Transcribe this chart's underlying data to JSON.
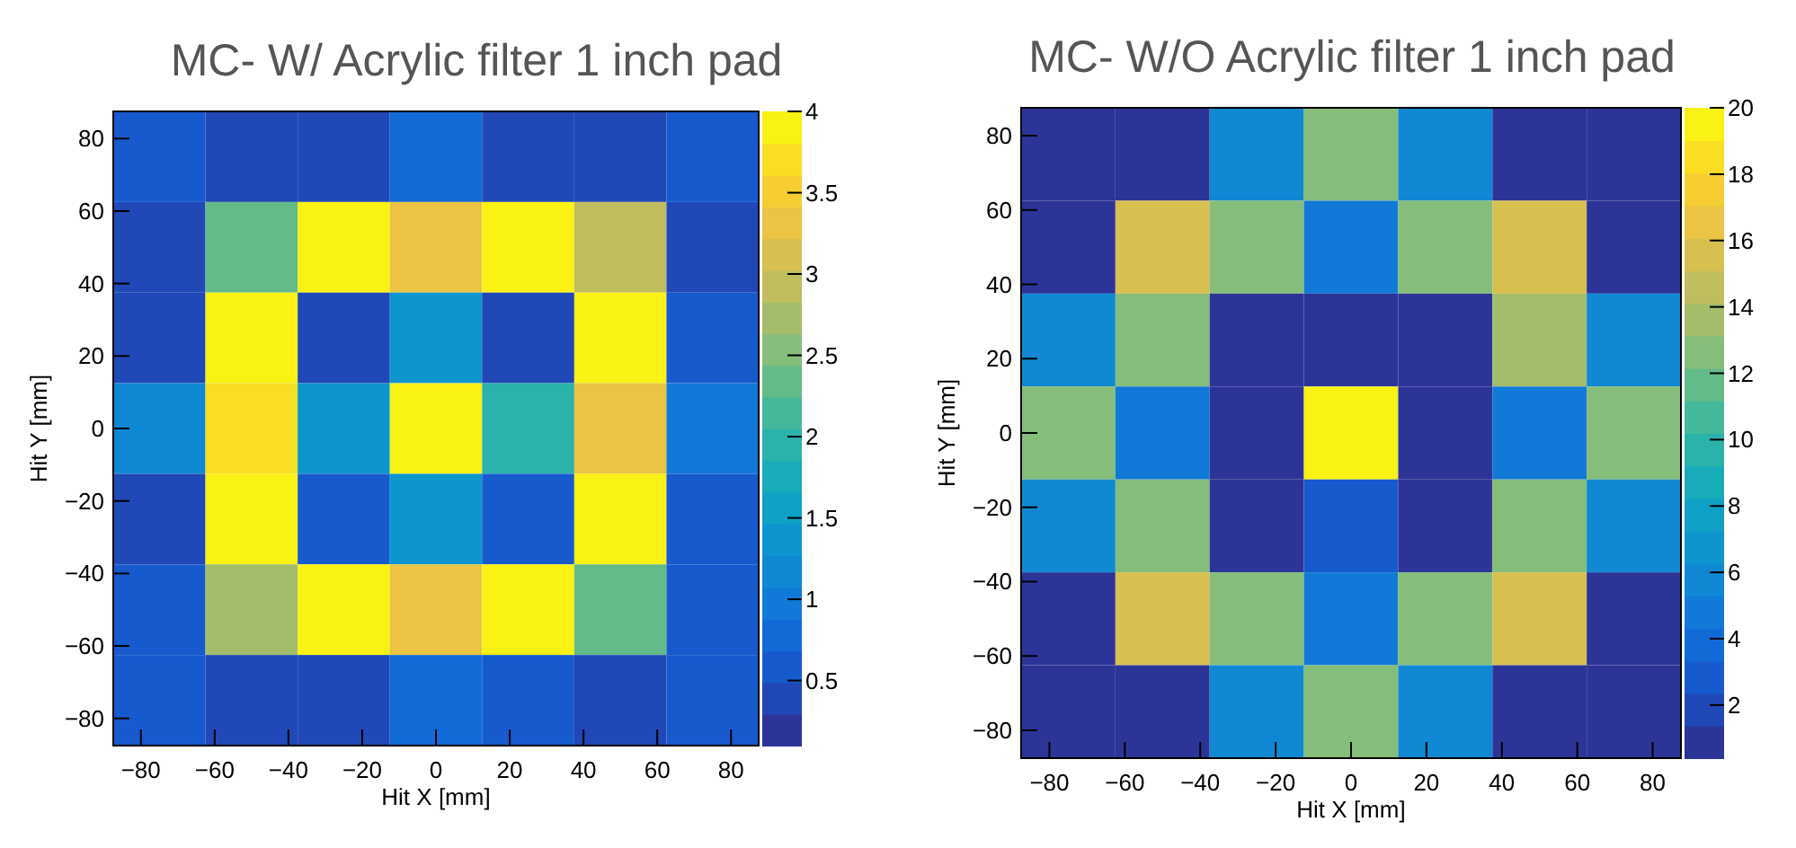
{
  "chart_data": [
    {
      "type": "heatmap",
      "title": "MC- W/ Acrylic filter 1 inch pad",
      "xlabel": "Hit X [mm]",
      "ylabel": "Hit Y [mm]",
      "x": [
        -75,
        -50,
        -25,
        0,
        25,
        50,
        75
      ],
      "y": [
        75,
        50,
        25,
        0,
        -25,
        -50,
        -75
      ],
      "xlim": [
        -87.5,
        87.5
      ],
      "ylim": [
        -87.5,
        87.5
      ],
      "xticks": [
        -80,
        -60,
        -40,
        -20,
        0,
        20,
        40,
        60,
        80
      ],
      "yticks": [
        -80,
        -60,
        -40,
        -20,
        0,
        20,
        40,
        60,
        80
      ],
      "cells": [
        [
          0.6,
          0.3,
          0.3,
          0.7,
          0.3,
          0.3,
          0.6
        ],
        [
          0.3,
          2.4,
          4,
          3.4,
          4,
          2.9,
          0.4
        ],
        [
          0.4,
          4,
          0.3,
          1.4,
          0.3,
          4,
          0.5
        ],
        [
          1.2,
          3.7,
          1.4,
          4,
          2.0,
          3.4,
          1.0
        ],
        [
          0.4,
          4,
          0.5,
          1.4,
          0.5,
          4,
          0.5
        ],
        [
          0.6,
          2.8,
          4,
          3.4,
          4,
          2.4,
          0.5
        ],
        [
          0.6,
          0.3,
          0.3,
          0.8,
          0.5,
          0.3,
          0.6
        ]
      ],
      "clim": [
        0.1,
        4
      ],
      "cticks": [
        0.5,
        1,
        1.5,
        2,
        2.5,
        3,
        3.5,
        4
      ]
    },
    {
      "type": "heatmap",
      "title": "MC- W/O Acrylic filter 1 inch pad",
      "xlabel": "Hit X [mm]",
      "ylabel": "Hit Y [mm]",
      "x": [
        -75,
        -50,
        -25,
        0,
        25,
        50,
        75
      ],
      "y": [
        75,
        50,
        25,
        0,
        -25,
        -50,
        -75
      ],
      "xlim": [
        -87.5,
        87.5
      ],
      "ylim": [
        -87.5,
        87.5
      ],
      "xticks": [
        -80,
        -60,
        -40,
        -20,
        0,
        20,
        40,
        60,
        80
      ],
      "yticks": [
        -80,
        -60,
        -40,
        -20,
        0,
        20,
        40,
        60,
        80
      ],
      "cells": [
        [
          0.5,
          0.5,
          6,
          13,
          6,
          0.5,
          0.5
        ],
        [
          0.5,
          16,
          13,
          5,
          13,
          16,
          0.5
        ],
        [
          6,
          13,
          0.5,
          0.5,
          0.5,
          14,
          6
        ],
        [
          13,
          5,
          0.5,
          20,
          0.5,
          5,
          13
        ],
        [
          6,
          13,
          0.5,
          3,
          0.5,
          13,
          6
        ],
        [
          0.5,
          16,
          13,
          5,
          13,
          16,
          0.5
        ],
        [
          0.5,
          0.5,
          6,
          13,
          6,
          0.5,
          0.5
        ]
      ],
      "clim": [
        0.4,
        20
      ],
      "cticks": [
        2,
        4,
        6,
        8,
        10,
        12,
        14,
        16,
        18,
        20
      ]
    }
  ]
}
